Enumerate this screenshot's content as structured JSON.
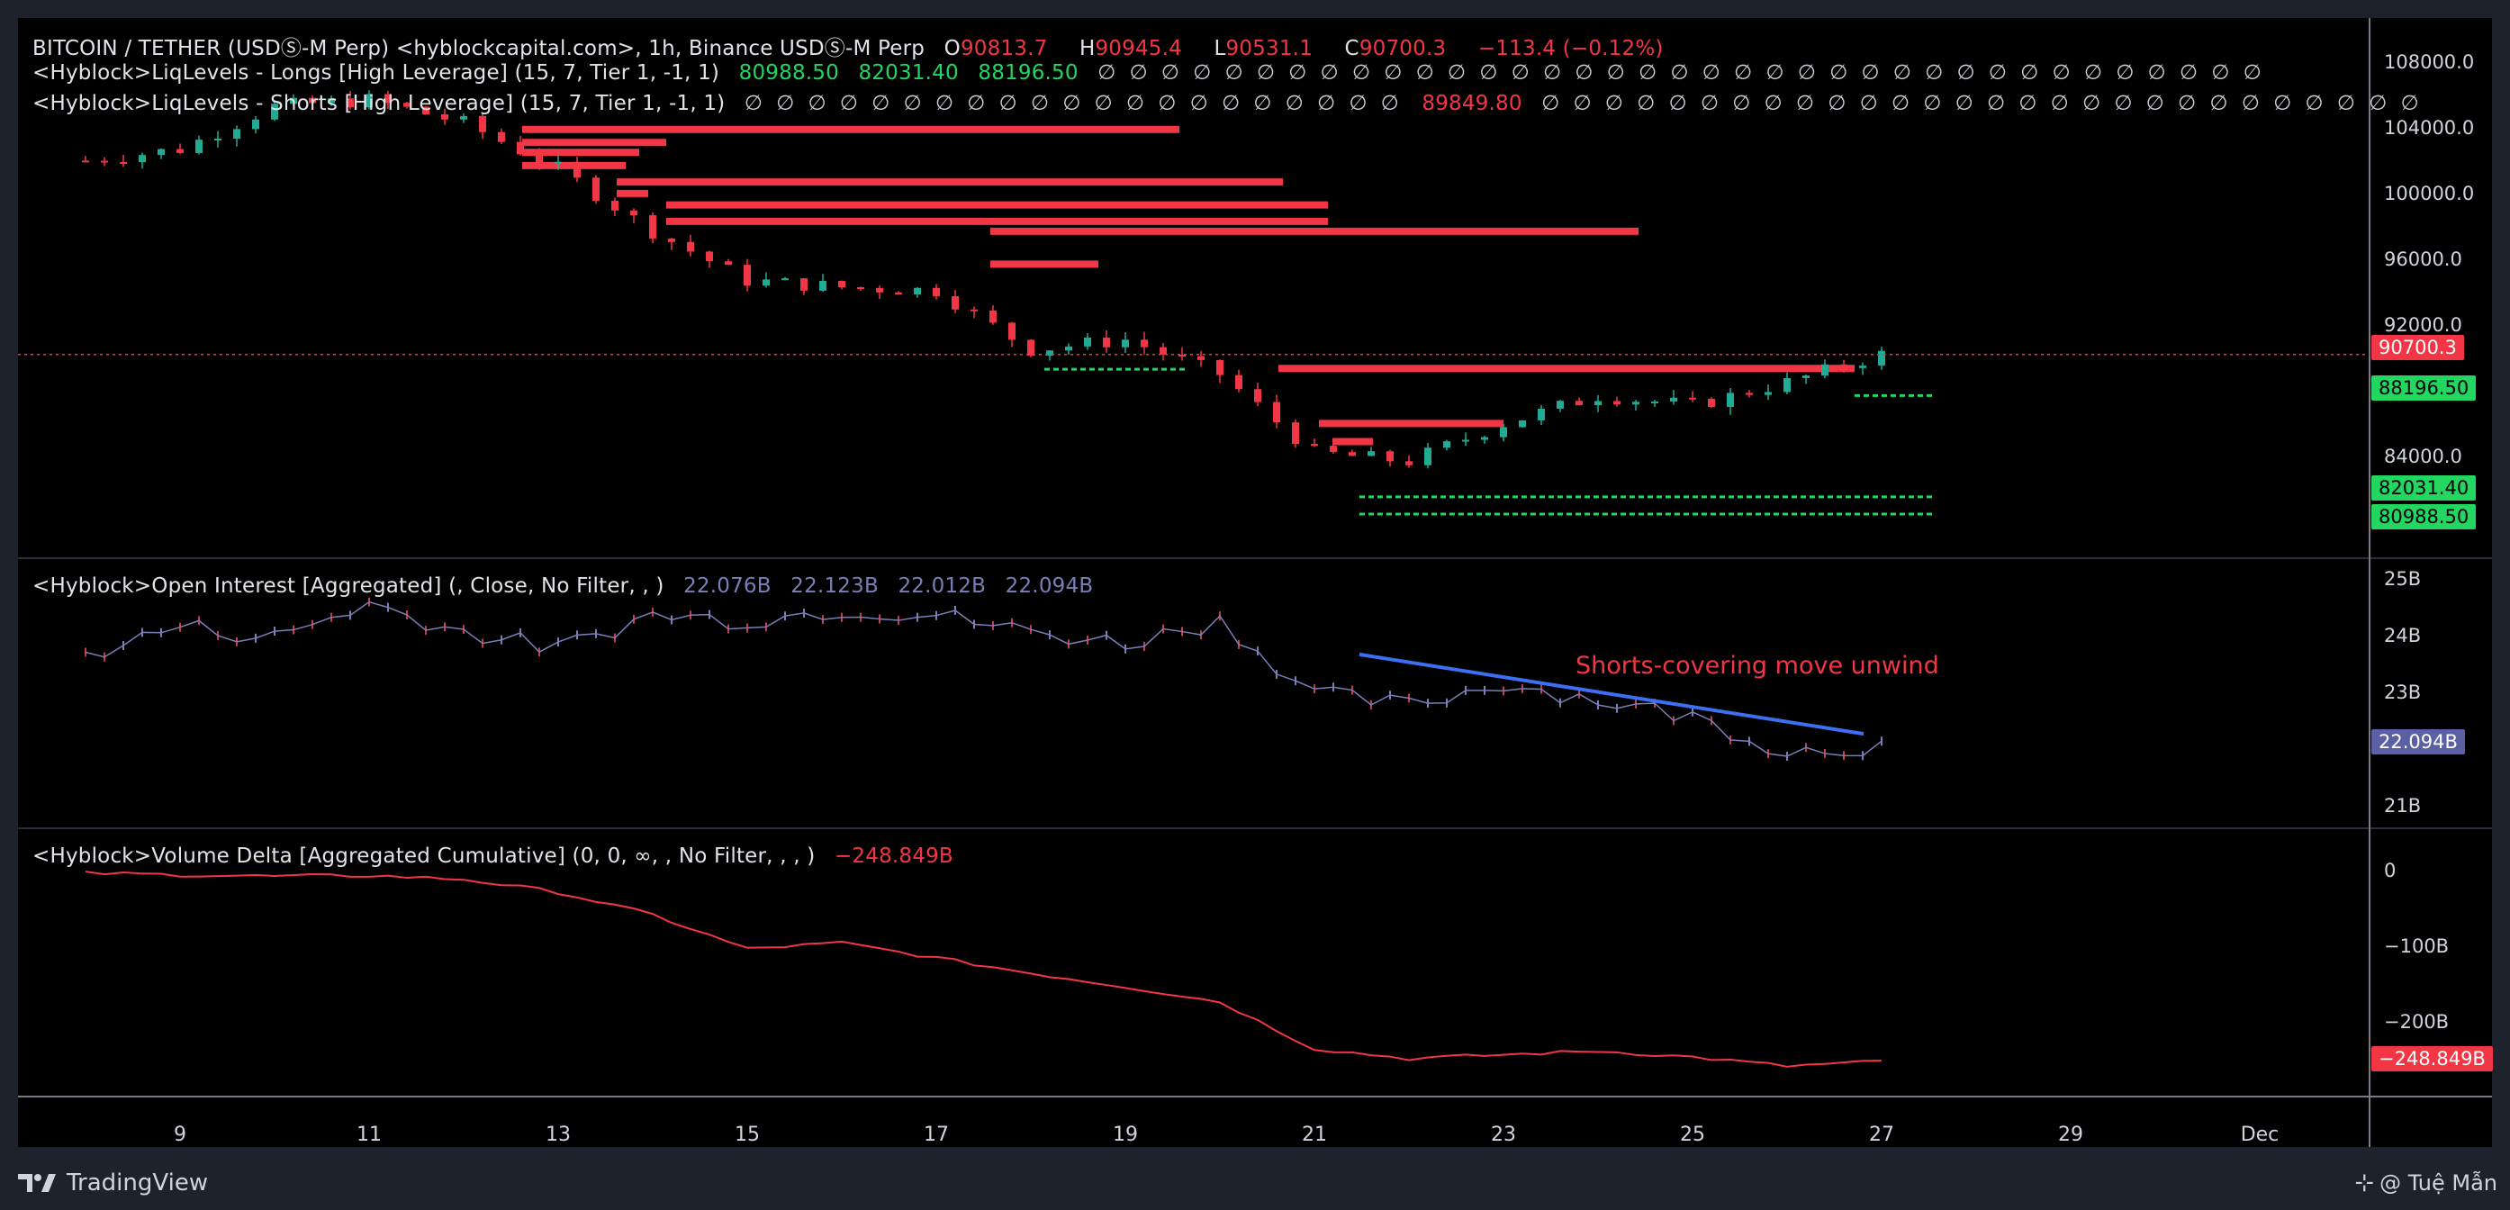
{
  "header": {
    "symbol_line": "BITCOIN / TETHER (USDⓈ-M Perp) <hyblockcapital.com>, 1h, Binance USDⓈ-M Perp",
    "ohlc": [
      {
        "k": "O",
        "v": "90813.7"
      },
      {
        "k": "H",
        "v": "90945.4"
      },
      {
        "k": "L",
        "v": "90531.1"
      },
      {
        "k": "C",
        "v": "90700.3"
      }
    ],
    "change": "−113.4 (−0.12%)",
    "longs_label": "<Hyblock>LiqLevels - Longs [High Leverage] (15, 7, Tier 1, -1, 1)",
    "longs_values": [
      "80988.50",
      "82031.40",
      "88196.50"
    ],
    "longs_empty": "∅ ∅ ∅ ∅ ∅ ∅ ∅ ∅ ∅ ∅ ∅ ∅ ∅ ∅ ∅ ∅ ∅ ∅ ∅ ∅ ∅ ∅ ∅ ∅ ∅ ∅ ∅ ∅ ∅ ∅ ∅ ∅ ∅ ∅ ∅ ∅ ∅",
    "shorts_label": "<Hyblock>LiqLevels - Shorts [High Leverage] (15, 7, Tier 1, -1, 1)",
    "shorts_empty_before": "∅ ∅ ∅ ∅ ∅ ∅ ∅ ∅ ∅ ∅ ∅ ∅ ∅ ∅ ∅ ∅ ∅ ∅ ∅ ∅ ∅",
    "shorts_value": "89849.80",
    "shorts_empty_after": "∅ ∅ ∅ ∅ ∅ ∅ ∅ ∅ ∅ ∅ ∅ ∅ ∅ ∅ ∅ ∅ ∅ ∅ ∅ ∅ ∅ ∅ ∅ ∅ ∅ ∅ ∅ ∅"
  },
  "oi_legend": {
    "label": "<Hyblock>Open Interest [Aggregated] (, Close, No Filter, , )",
    "values": [
      "22.076B",
      "22.123B",
      "22.012B",
      "22.094B"
    ]
  },
  "vd_legend": {
    "label": "<Hyblock>Volume Delta [Aggregated Cumulative] (0, 0, ∞, , No Filter, , , )",
    "value": "−248.849B"
  },
  "annotation": "Shorts-covering move unwind",
  "price_axis": [
    "108000.0",
    "104000.0",
    "100000.0",
    "96000.0",
    "92000.0",
    "84000.0"
  ],
  "price_badges": {
    "last": "90700.3",
    "long3": "88196.50",
    "long2": "82031.40",
    "long1": "80988.50"
  },
  "oi_axis": [
    "25B",
    "24B",
    "23B",
    "21B"
  ],
  "oi_badge": "22.094B",
  "vd_axis": [
    "0",
    "−100B",
    "−200B"
  ],
  "vd_badge": "−248.849B",
  "x_axis": [
    "9",
    "11",
    "13",
    "15",
    "17",
    "19",
    "21",
    "23",
    "25",
    "27",
    "29",
    "Dec"
  ],
  "footer": {
    "brand": "TradingView",
    "credit": "@ Tuệ Mẫn"
  },
  "colors": {
    "up": "#22ab94",
    "down": "#f23645",
    "oi": "#7a7fb8",
    "liq_short": "#f23645",
    "liq_long": "#22d660",
    "trend": "#3d6ff2"
  },
  "chart_data": [
    {
      "type": "line",
      "title": "BITCOIN / TETHER (USDⓈ-M Perp), 1h",
      "x": [
        "Nov 8",
        "Nov 9",
        "Nov 10",
        "Nov 11",
        "Nov 12",
        "Nov 13",
        "Nov 14",
        "Nov 15",
        "Nov 16",
        "Nov 17",
        "Nov 18",
        "Nov 19",
        "Nov 20",
        "Nov 21",
        "Nov 22",
        "Nov 23",
        "Nov 24",
        "Nov 25",
        "Nov 26",
        "Nov 27"
      ],
      "series": [
        {
          "name": "Close",
          "values": [
            102500,
            103200,
            105800,
            106200,
            104800,
            102000,
            98200,
            95200,
            94800,
            94600,
            91000,
            91600,
            89500,
            84700,
            84200,
            86500,
            88200,
            87600,
            89000,
            90700
          ]
        }
      ],
      "ylim": [
        79000,
        110000
      ],
      "liq_short_levels": [
        104400,
        103600,
        103000,
        102200,
        101200,
        100500,
        99800,
        98800,
        98200,
        96200,
        89849.8,
        86500,
        85400
      ],
      "liq_long_levels": [
        88196.5,
        82031.4,
        80988.5,
        89800
      ]
    },
    {
      "type": "line",
      "title": "<Hyblock>Open Interest [Aggregated]",
      "x": [
        "Nov 8",
        "Nov 9",
        "Nov 10",
        "Nov 11",
        "Nov 12",
        "Nov 13",
        "Nov 14",
        "Nov 15",
        "Nov 16",
        "Nov 17",
        "Nov 18",
        "Nov 19",
        "Nov 20",
        "Nov 21",
        "Nov 22",
        "Nov 23",
        "Nov 24",
        "Nov 25",
        "Nov 26",
        "Nov 27"
      ],
      "series": [
        {
          "name": "Open Interest",
          "values": [
            23.7,
            24.2,
            24.0,
            24.6,
            24.1,
            23.8,
            24.4,
            24.3,
            24.5,
            24.4,
            24.1,
            23.9,
            24.3,
            23.0,
            22.8,
            23.2,
            22.9,
            22.6,
            22.0,
            22.1
          ]
        }
      ],
      "ylabel": "B",
      "ylim": [
        20.6,
        25.4
      ],
      "trendline": {
        "from": [
          "Nov 21",
          23.7
        ],
        "to": [
          "Nov 27",
          22.3
        ]
      }
    },
    {
      "type": "line",
      "title": "<Hyblock>Volume Delta [Aggregated Cumulative]",
      "x": [
        "Nov 8",
        "Nov 9",
        "Nov 10",
        "Nov 11",
        "Nov 12",
        "Nov 13",
        "Nov 14",
        "Nov 15",
        "Nov 16",
        "Nov 17",
        "Nov 18",
        "Nov 19",
        "Nov 20",
        "Nov 21",
        "Nov 22",
        "Nov 23",
        "Nov 24",
        "Nov 25",
        "Nov 26",
        "Nov 27"
      ],
      "series": [
        {
          "name": "Volume Delta",
          "values": [
            0,
            -2,
            -4,
            -3,
            -8,
            -25,
            -55,
            -100,
            -92,
            -112,
            -132,
            -150,
            -170,
            -232,
            -245,
            -240,
            -235,
            -243,
            -255,
            -248.8
          ]
        }
      ],
      "ylabel": "B",
      "ylim": [
        -285,
        22
      ]
    }
  ]
}
